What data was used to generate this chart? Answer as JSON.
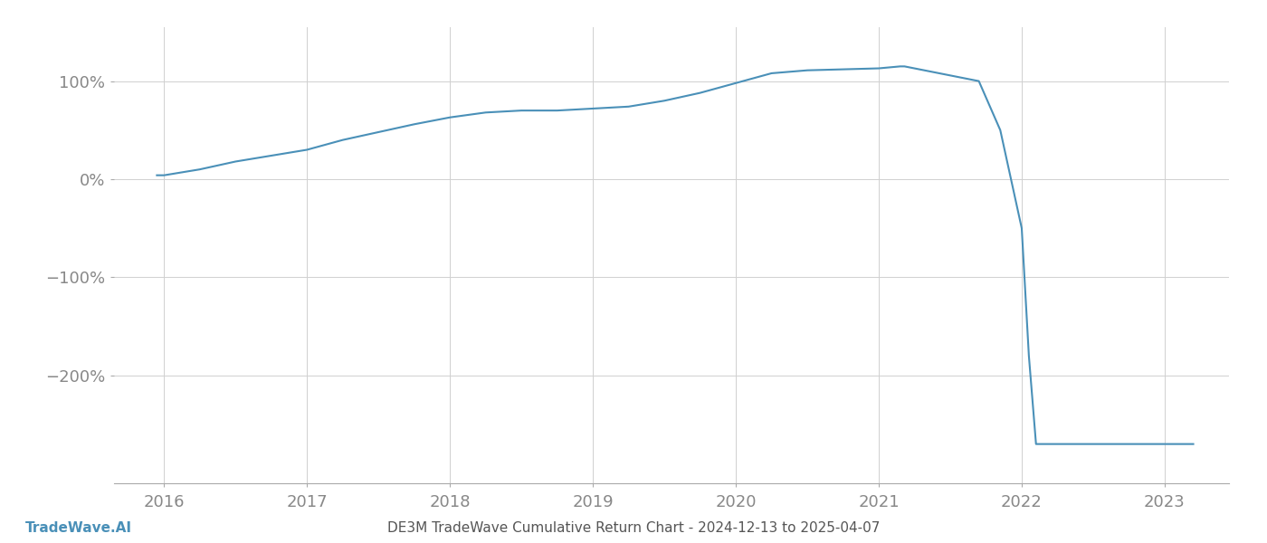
{
  "title": "DE3M TradeWave Cumulative Return Chart - 2024-12-13 to 2025-04-07",
  "footer_left": "TradeWave.AI",
  "line_color": "#4a90b8",
  "background_color": "#ffffff",
  "grid_color": "#d0d0d0",
  "x_years": [
    2015.95,
    2016.0,
    2016.25,
    2016.5,
    2016.75,
    2017.0,
    2017.25,
    2017.5,
    2017.75,
    2018.0,
    2018.25,
    2018.5,
    2018.75,
    2019.0,
    2019.25,
    2019.5,
    2019.75,
    2020.0,
    2020.25,
    2020.5,
    2020.75,
    2021.0,
    2021.15,
    2021.18,
    2021.7,
    2021.85,
    2022.0,
    2022.05,
    2022.1,
    2022.5,
    2022.75,
    2023.0,
    2023.2
  ],
  "y_values": [
    4,
    4,
    10,
    18,
    24,
    30,
    40,
    48,
    56,
    63,
    68,
    70,
    70,
    72,
    74,
    80,
    88,
    98,
    108,
    111,
    112,
    113,
    115,
    115,
    100,
    50,
    -50,
    -180,
    -270,
    -270,
    -270,
    -270,
    -270
  ],
  "ylim": [
    -310,
    155
  ],
  "yticks": [
    100,
    0,
    -100,
    -200
  ],
  "xlim_left": 2015.65,
  "xlim_right": 2023.45,
  "xticks": [
    2016,
    2017,
    2018,
    2019,
    2020,
    2021,
    2022,
    2023
  ]
}
